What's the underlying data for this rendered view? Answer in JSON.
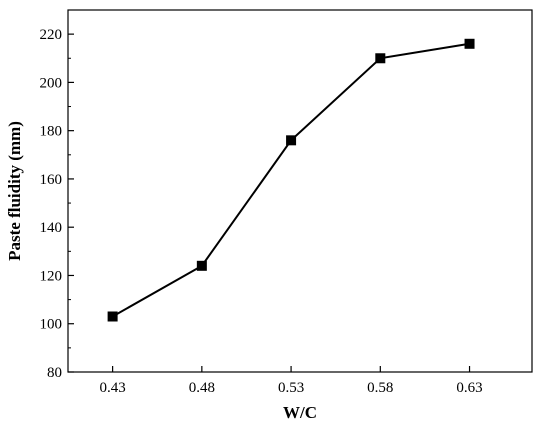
{
  "chart_data": {
    "type": "line",
    "xlabel": "W/C",
    "ylabel": "Paste fluidity (mm)",
    "x": [
      0.43,
      0.48,
      0.53,
      0.58,
      0.63
    ],
    "x_tick_labels": [
      "0.43",
      "0.48",
      "0.53",
      "0.58",
      "0.63"
    ],
    "series": [
      {
        "values": [
          103,
          124,
          176,
          210,
          216
        ],
        "marker": "square",
        "color": "#000000"
      }
    ],
    "xlim": [
      0.405,
      0.665
    ],
    "ylim": [
      80,
      230
    ],
    "y_ticks": [
      80,
      100,
      120,
      140,
      160,
      180,
      200,
      220
    ],
    "grid": false,
    "legend": "none"
  }
}
